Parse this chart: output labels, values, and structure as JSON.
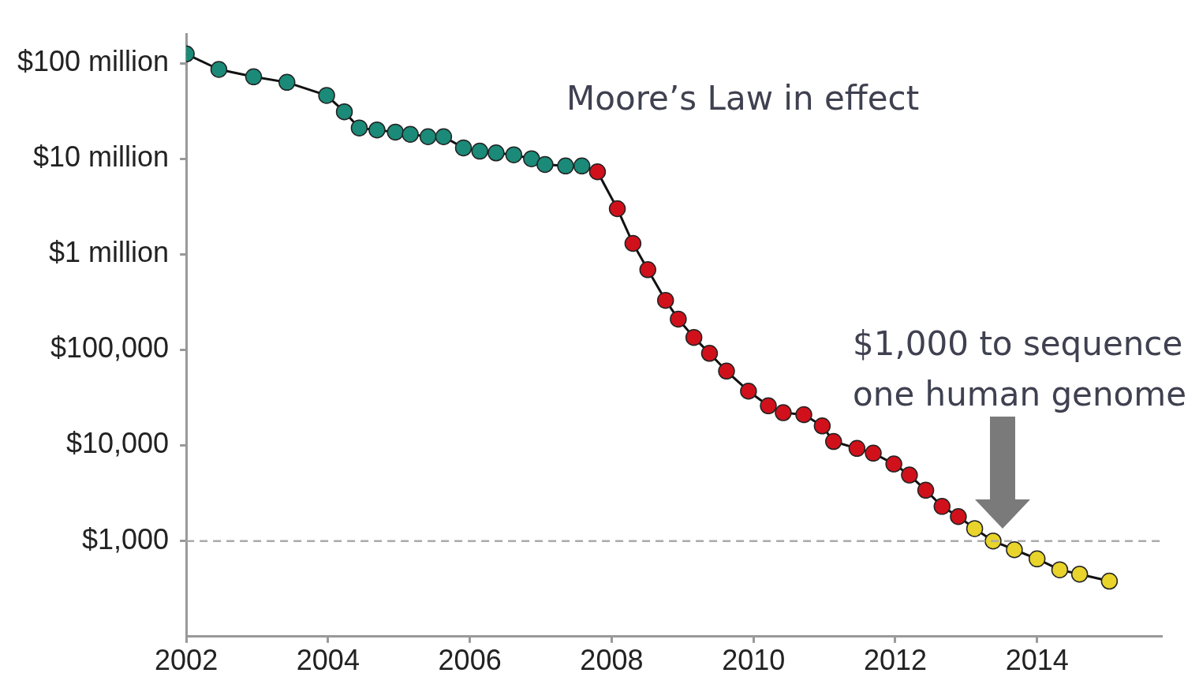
{
  "chart_data": {
    "type": "line",
    "x": [
      2002.0,
      2002.46,
      2002.95,
      2003.42,
      2003.98,
      2004.23,
      2004.44,
      2004.69,
      2004.95,
      2005.16,
      2005.41,
      2005.63,
      2005.91,
      2006.14,
      2006.37,
      2006.62,
      2006.87,
      2007.06,
      2007.35,
      2007.58,
      2007.8,
      2008.08,
      2008.3,
      2008.51,
      2008.76,
      2008.94,
      2009.16,
      2009.38,
      2009.62,
      2009.93,
      2010.21,
      2010.42,
      2010.71,
      2010.97,
      2011.13,
      2011.46,
      2011.69,
      2011.98,
      2012.2,
      2012.43,
      2012.66,
      2012.89,
      2013.12,
      2013.38,
      2013.68,
      2014.0,
      2014.32,
      2014.6,
      2015.02
    ],
    "series": [
      {
        "color": "#111111",
        "values": [
          125000000,
          86000000,
          72000000,
          63000000,
          46000000,
          31000000,
          21000000,
          20000000,
          19000000,
          18000000,
          17000000,
          17000000,
          13000000,
          12000000,
          11500000,
          11000000,
          10000000,
          8700000,
          8400000,
          8400000,
          7300000,
          3000000,
          1300000,
          690000,
          330000,
          210000,
          135000,
          92000,
          60000,
          37000,
          26000,
          22000,
          21000,
          16000,
          11000,
          9300,
          8300,
          6400,
          4900,
          3400,
          2300,
          1800,
          1350,
          1000,
          810,
          650,
          500,
          450,
          380
        ],
        "colors": [
          "#1b8a78",
          "#1b8a78",
          "#1b8a78",
          "#1b8a78",
          "#1b8a78",
          "#1b8a78",
          "#1b8a78",
          "#1b8a78",
          "#1b8a78",
          "#1b8a78",
          "#1b8a78",
          "#1b8a78",
          "#1b8a78",
          "#1b8a78",
          "#1b8a78",
          "#1b8a78",
          "#1b8a78",
          "#1b8a78",
          "#1b8a78",
          "#1b8a78",
          "#d0111b",
          "#d0111b",
          "#d0111b",
          "#d0111b",
          "#d0111b",
          "#d0111b",
          "#d0111b",
          "#d0111b",
          "#d0111b",
          "#d0111b",
          "#d0111b",
          "#d0111b",
          "#d0111b",
          "#d0111b",
          "#d0111b",
          "#d0111b",
          "#d0111b",
          "#d0111b",
          "#d0111b",
          "#d0111b",
          "#d0111b",
          "#d0111b",
          "#e8d42a",
          "#e8d42a",
          "#e8d42a",
          "#e8d42a",
          "#e8d42a",
          "#e8d42a",
          "#e8d42a"
        ]
      }
    ],
    "log": true,
    "xlim": [
      2002,
      2015.75
    ],
    "xticks": [
      2002,
      2004,
      2006,
      2008,
      2010,
      2012,
      2014
    ],
    "ylim": [
      100,
      200000000
    ],
    "yticks": [
      {
        "value": 100000000,
        "label": "$100 million"
      },
      {
        "value": 10000000,
        "label": "$10 million"
      },
      {
        "value": 1000000,
        "label": "$1 million"
      },
      {
        "value": 100000,
        "label": "$100,000"
      },
      {
        "value": 10000,
        "label": "$10,000"
      },
      {
        "value": 1000,
        "label": "$1,000"
      }
    ],
    "grid": false,
    "legend": false,
    "marker": "circle",
    "line_style": "solid",
    "ref_lines": [
      {
        "axis": "y",
        "value": 1000,
        "color": "#aaaaaa",
        "line_style": "dashed"
      }
    ],
    "annotations": [
      "Moore’s Law in effect",
      "$1,000 to sequence one human genome"
    ]
  }
}
